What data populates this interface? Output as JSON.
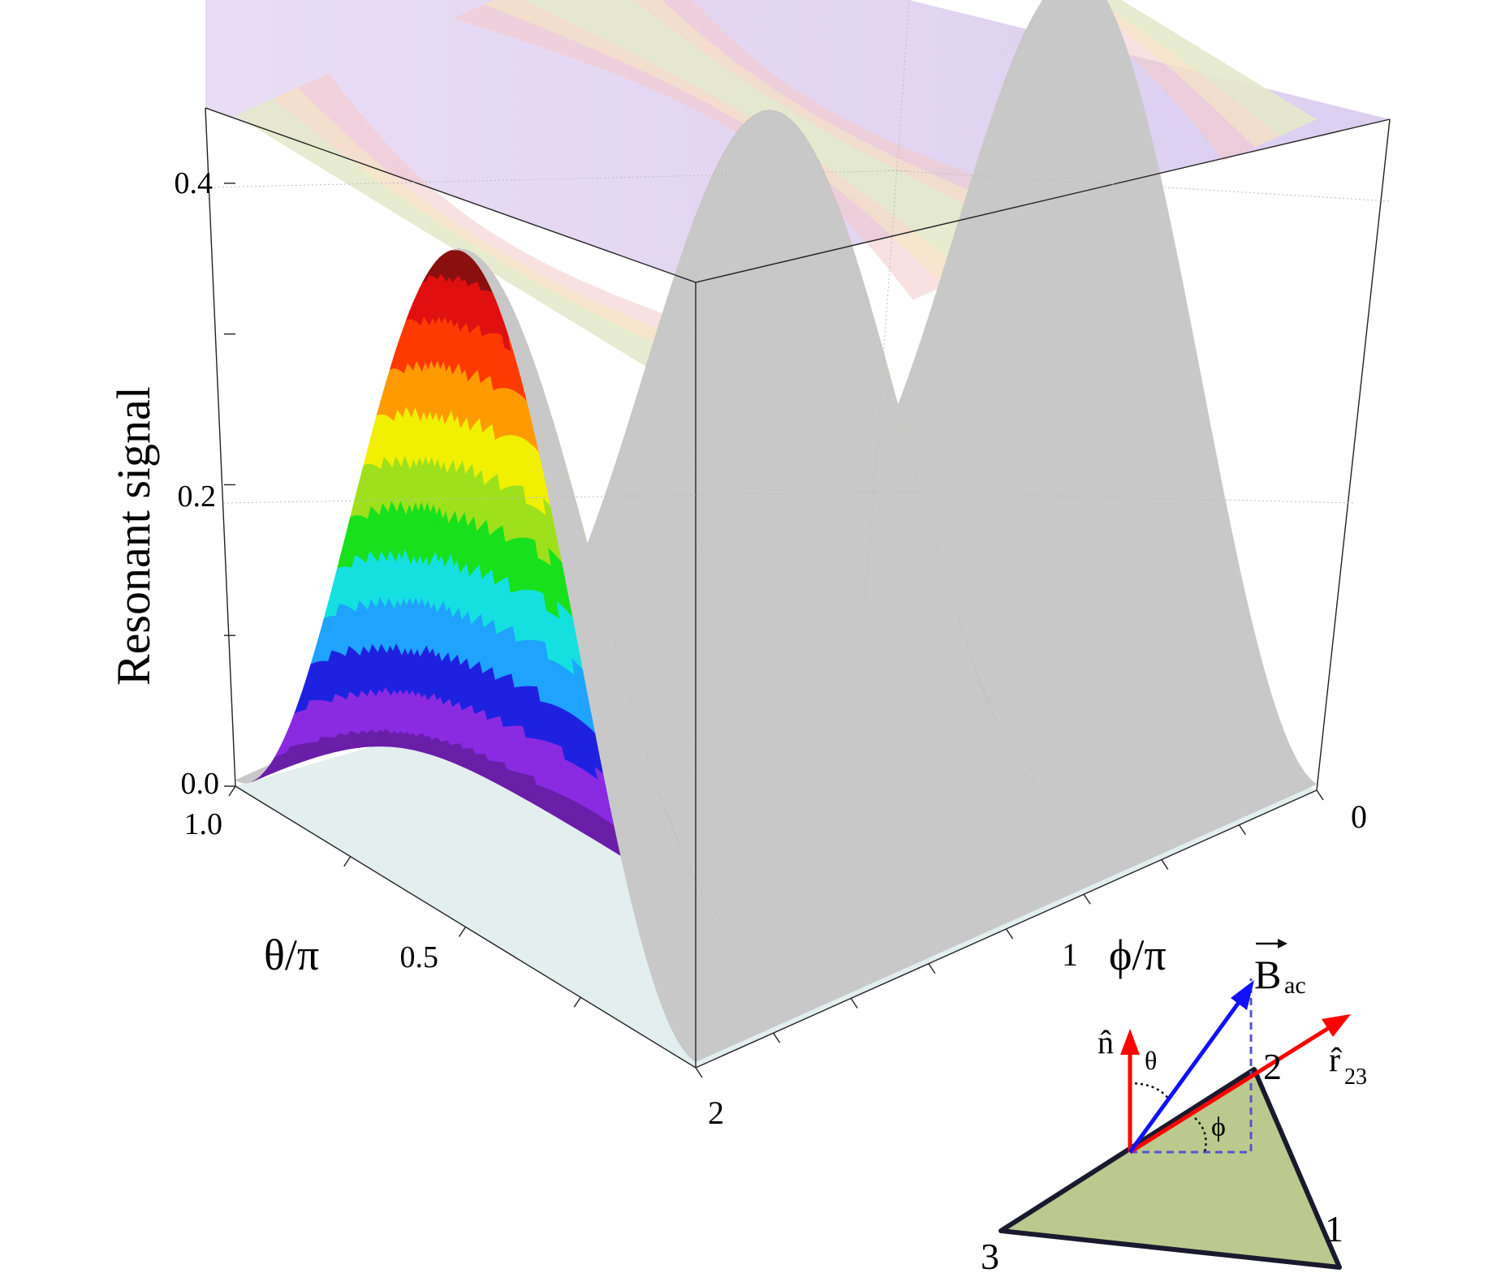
{
  "chart_data": {
    "type": "surface3d",
    "title": "",
    "z_axis": {
      "label": "Resonant signal",
      "range": [
        0,
        0.45
      ],
      "ticks": [
        "0.0",
        "0.2",
        "0.4"
      ],
      "tick_values": [
        0.0,
        0.2,
        0.4
      ]
    },
    "theta_axis": {
      "label": "θ/π",
      "range": [
        0,
        1
      ],
      "ticks": [
        "1.0",
        "0.5"
      ],
      "tick_values": [
        1.0,
        0.5
      ]
    },
    "phi_axis": {
      "label": "ϕ/π",
      "range": [
        0,
        2
      ],
      "ticks": [
        "0",
        "1",
        "2"
      ],
      "tick_values": [
        0,
        1,
        2
      ]
    },
    "grid": true,
    "colormap": [
      "#6a1fa8",
      "#8a2be2",
      "#1e22e0",
      "#1fa3ff",
      "#14e0e0",
      "#18e01c",
      "#9ee01c",
      "#f0f000",
      "#ff9a00",
      "#ff3a00",
      "#e01010",
      "#8a1010"
    ],
    "surface_function": "0.45 * sin^2(theta*pi) * cos^2(phi*pi)",
    "peak_value": 0.45,
    "top_projection": "contour"
  },
  "inset": {
    "vector_labels": {
      "n": "n̂",
      "B": "B",
      "B_sub": "ac",
      "r": "r̂",
      "r_sub": "23"
    },
    "angle_labels": {
      "theta": "θ",
      "phi": "ϕ"
    },
    "vertex_labels": [
      "1",
      "2",
      "3"
    ],
    "colors": {
      "n": "#ff0000",
      "r": "#ff0000",
      "B": "#1010ff",
      "triangle_fill": "#bcc98e",
      "triangle_stroke": "#1a1a2e"
    }
  }
}
